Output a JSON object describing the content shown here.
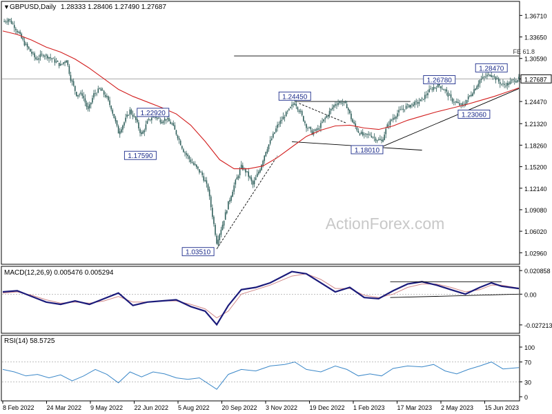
{
  "header": {
    "symbol": "GBPUSD,Daily",
    "ohlc": "1.28333 1.28406 1.27490 1.27687"
  },
  "watermark": "ActionForex.com",
  "colors": {
    "candle": "#2e5e5a",
    "ma": "#d21d1d",
    "macd": "#1a1a7a",
    "signal": "#d08888",
    "rsi": "#3a87c8",
    "label_border": "#1a2a8a",
    "grid": "#000000"
  },
  "chart_data": [
    {
      "type": "candlestick",
      "title": "GBPUSD,Daily",
      "ylim": [
        1.0142,
        1.3861
      ],
      "y_ticks": [
        "1.36710",
        "1.33650",
        "1.30590",
        "1.27687",
        "1.24470",
        "1.21320",
        "1.18260",
        "1.15200",
        "1.12140",
        "1.09080",
        "1.06020",
        "1.02960"
      ],
      "y_tick_values": [
        1.3671,
        1.3365,
        1.3059,
        1.27687,
        1.2447,
        1.2132,
        1.1826,
        1.152,
        1.1214,
        1.0908,
        1.0602,
        1.0296
      ],
      "x_ticks": [
        "8 Feb 2022",
        "24 Mar 2022",
        "9 May 2022",
        "22 Jun 2022",
        "5 Aug 2022",
        "20 Sep 2022",
        "3 Nov 2022",
        "19 Dec 2022",
        "1 Feb 2023",
        "17 Mar 2023",
        "2 May 2023",
        "15 Jun 2023"
      ],
      "last_price": 1.27687,
      "price_path": [
        [
          0,
          1.358
        ],
        [
          4,
          1.362
        ],
        [
          8,
          1.352
        ],
        [
          12,
          1.338
        ],
        [
          15,
          1.327
        ],
        [
          19,
          1.316
        ],
        [
          23,
          1.305
        ],
        [
          28,
          1.312
        ],
        [
          32,
          1.308
        ],
        [
          36,
          1.302
        ],
        [
          40,
          1.296
        ],
        [
          44,
          1.305
        ],
        [
          47,
          1.277
        ],
        [
          51,
          1.255
        ],
        [
          55,
          1.255
        ],
        [
          59,
          1.232
        ],
        [
          63,
          1.255
        ],
        [
          67,
          1.262
        ],
        [
          71,
          1.253
        ],
        [
          75,
          1.236
        ],
        [
          80,
          1.201
        ],
        [
          84,
          1.215
        ],
        [
          88,
          1.232
        ],
        [
          92,
          1.218
        ],
        [
          96,
          1.197
        ],
        [
          100,
          1.215
        ],
        [
          104,
          1.225
        ],
        [
          109,
          1.218
        ],
        [
          113,
          1.22
        ],
        [
          117,
          1.212
        ],
        [
          121,
          1.195
        ],
        [
          125,
          1.175
        ],
        [
          130,
          1.16
        ],
        [
          134,
          1.15
        ],
        [
          138,
          1.14
        ],
        [
          142,
          1.12
        ],
        [
          148,
          1.045
        ],
        [
          152,
          1.07
        ],
        [
          156,
          1.1
        ],
        [
          160,
          1.125
        ],
        [
          165,
          1.152
        ],
        [
          169,
          1.143
        ],
        [
          173,
          1.126
        ],
        [
          178,
          1.15
        ],
        [
          182,
          1.175
        ],
        [
          186,
          1.192
        ],
        [
          190,
          1.21
        ],
        [
          194,
          1.222
        ],
        [
          198,
          1.232
        ],
        [
          202,
          1.2445
        ],
        [
          206,
          1.228
        ],
        [
          210,
          1.21
        ],
        [
          214,
          1.2
        ],
        [
          218,
          1.205
        ],
        [
          222,
          1.218
        ],
        [
          226,
          1.23
        ],
        [
          230,
          1.242
        ],
        [
          234,
          1.2445
        ],
        [
          238,
          1.238
        ],
        [
          242,
          1.215
        ],
        [
          246,
          1.202
        ],
        [
          250,
          1.195
        ],
        [
          254,
          1.198
        ],
        [
          258,
          1.192
        ],
        [
          262,
          1.188
        ],
        [
          266,
          1.21
        ],
        [
          270,
          1.222
        ],
        [
          274,
          1.23
        ],
        [
          278,
          1.236
        ],
        [
          282,
          1.24
        ],
        [
          286,
          1.242
        ],
        [
          290,
          1.247
        ],
        [
          294,
          1.258
        ],
        [
          298,
          1.265
        ],
        [
          302,
          1.2678
        ],
        [
          306,
          1.26
        ],
        [
          310,
          1.248
        ],
        [
          314,
          1.242
        ],
        [
          318,
          1.238
        ],
        [
          322,
          1.25
        ],
        [
          326,
          1.262
        ],
        [
          330,
          1.275
        ],
        [
          334,
          1.28
        ],
        [
          338,
          1.2847
        ],
        [
          342,
          1.275
        ],
        [
          346,
          1.268
        ],
        [
          350,
          1.27
        ],
        [
          354,
          1.276
        ],
        [
          357,
          1.2769
        ]
      ],
      "series": [
        {
          "name": "MA",
          "values": [
            [
              0,
              1.345
            ],
            [
              10,
              1.34
            ],
            [
              20,
              1.332
            ],
            [
              30,
              1.322
            ],
            [
              40,
              1.315
            ],
            [
              50,
              1.305
            ],
            [
              60,
              1.292
            ],
            [
              70,
              1.277
            ],
            [
              80,
              1.262
            ],
            [
              90,
              1.252
            ],
            [
              100,
              1.244
            ],
            [
              110,
              1.236
            ],
            [
              120,
              1.227
            ],
            [
              130,
              1.211
            ],
            [
              140,
              1.188
            ],
            [
              150,
              1.162
            ],
            [
              160,
              1.149
            ],
            [
              170,
              1.149
            ],
            [
              180,
              1.153
            ],
            [
              190,
              1.165
            ],
            [
              200,
              1.18
            ],
            [
              210,
              1.195
            ],
            [
              220,
              1.204
            ],
            [
              230,
              1.21
            ],
            [
              240,
              1.211
            ],
            [
              250,
              1.207
            ],
            [
              260,
              1.205
            ],
            [
              270,
              1.21
            ],
            [
              280,
              1.218
            ],
            [
              290,
              1.224
            ],
            [
              300,
              1.23
            ],
            [
              310,
              1.235
            ],
            [
              320,
              1.24
            ],
            [
              330,
              1.246
            ],
            [
              340,
              1.252
            ],
            [
              350,
              1.259
            ],
            [
              357,
              1.264
            ]
          ]
        }
      ],
      "annotations": [
        {
          "text": "1.22920",
          "x": 92,
          "y": 1.2292
        },
        {
          "text": "1.17590",
          "x": 88,
          "y": 1.1759
        },
        {
          "text": "1.03510",
          "x": 148,
          "y": 1.0351
        },
        {
          "text": "1.24450",
          "x": 202,
          "y": 1.2445
        },
        {
          "text": "1.18010",
          "x": 262,
          "y": 1.1801
        },
        {
          "text": "1.26780",
          "x": 302,
          "y": 1.2678
        },
        {
          "text": "1.23060",
          "x": 314,
          "y": 1.2306
        },
        {
          "text": "1.28470",
          "x": 338,
          "y": 1.2847
        },
        {
          "text": "FE 61.8",
          "x": 352,
          "y": 1.3095
        }
      ],
      "lines": [
        {
          "name": "fe-618-line",
          "from": [
            160,
            1.3095
          ],
          "to": [
            357,
            1.3095
          ]
        },
        {
          "name": "resistance-line",
          "from": [
            202,
            1.2447
          ],
          "to": [
            282,
            1.2447
          ]
        },
        {
          "name": "support-line",
          "from": [
            200,
            1.1875
          ],
          "to": [
            290,
            1.1755
          ]
        },
        {
          "name": "rising-trendline",
          "from": [
            262,
            1.1801
          ],
          "to": [
            357,
            1.263
          ]
        },
        {
          "name": "dashed-rally-line",
          "from": [
            148,
            1.0351
          ],
          "to": [
            190,
            1.1675
          ]
        },
        {
          "name": "dashed-retrace-line",
          "from": [
            205,
            1.242
          ],
          "to": [
            238,
            1.2137
          ]
        }
      ]
    },
    {
      "type": "line",
      "title": "MACD(12,26,9) 0.005476 0.005294",
      "ylim": [
        -0.034,
        0.024
      ],
      "y_ticks": [
        "0.020858",
        "0.00",
        "-0.027213"
      ],
      "y_tick_values": [
        0.020858,
        0.0,
        -0.027213
      ],
      "series": [
        {
          "name": "MACD",
          "values": [
            [
              0,
              0.002
            ],
            [
              10,
              0.003
            ],
            [
              20,
              -0.002
            ],
            [
              30,
              -0.007
            ],
            [
              40,
              -0.009
            ],
            [
              50,
              -0.006
            ],
            [
              60,
              -0.009
            ],
            [
              70,
              -0.004
            ],
            [
              80,
              0.001
            ],
            [
              90,
              -0.01
            ],
            [
              100,
              -0.007
            ],
            [
              110,
              -0.006
            ],
            [
              120,
              -0.005
            ],
            [
              130,
              -0.011
            ],
            [
              140,
              -0.015
            ],
            [
              148,
              -0.027
            ],
            [
              156,
              -0.01
            ],
            [
              165,
              0.004
            ],
            [
              175,
              0.006
            ],
            [
              185,
              0.01
            ],
            [
              200,
              0.02
            ],
            [
              210,
              0.018
            ],
            [
              220,
              0.01
            ],
            [
              230,
              0.002
            ],
            [
              240,
              0.006
            ],
            [
              250,
              -0.003
            ],
            [
              260,
              -0.004
            ],
            [
              270,
              0.003
            ],
            [
              280,
              0.009
            ],
            [
              290,
              0.011
            ],
            [
              300,
              0.008
            ],
            [
              310,
              0.004
            ],
            [
              320,
              0.0
            ],
            [
              330,
              0.006
            ],
            [
              338,
              0.01
            ],
            [
              345,
              0.007
            ],
            [
              357,
              0.005
            ]
          ]
        },
        {
          "name": "Signal",
          "values": [
            [
              0,
              0.001
            ],
            [
              10,
              0.002
            ],
            [
              20,
              -0.001
            ],
            [
              30,
              -0.005
            ],
            [
              40,
              -0.008
            ],
            [
              50,
              -0.007
            ],
            [
              60,
              -0.008
            ],
            [
              70,
              -0.006
            ],
            [
              80,
              -0.002
            ],
            [
              90,
              -0.007
            ],
            [
              100,
              -0.007
            ],
            [
              110,
              -0.006
            ],
            [
              120,
              -0.006
            ],
            [
              130,
              -0.009
            ],
            [
              140,
              -0.013
            ],
            [
              148,
              -0.021
            ],
            [
              156,
              -0.015
            ],
            [
              165,
              0.0
            ],
            [
              175,
              0.004
            ],
            [
              185,
              0.008
            ],
            [
              200,
              0.016
            ],
            [
              210,
              0.018
            ],
            [
              220,
              0.013
            ],
            [
              230,
              0.005
            ],
            [
              240,
              0.005
            ],
            [
              250,
              -0.001
            ],
            [
              260,
              -0.003
            ],
            [
              270,
              0.0
            ],
            [
              280,
              0.006
            ],
            [
              290,
              0.009
            ],
            [
              300,
              0.009
            ],
            [
              310,
              0.006
            ],
            [
              320,
              0.002
            ],
            [
              330,
              0.004
            ],
            [
              338,
              0.008
            ],
            [
              345,
              0.008
            ],
            [
              357,
              0.0053
            ]
          ]
        }
      ],
      "lines": [
        {
          "name": "macd-upper-line",
          "from": [
            268,
            0.011
          ],
          "to": [
            345,
            0.011
          ]
        },
        {
          "name": "macd-lower-line",
          "from": [
            268,
            -0.003
          ],
          "to": [
            357,
            0.0
          ]
        }
      ]
    },
    {
      "type": "line",
      "title": "RSI(14) 58.5725",
      "ylim": [
        0,
        100
      ],
      "y_ticks": [
        "100",
        "70",
        "30",
        "0"
      ],
      "y_tick_values": [
        100,
        70,
        30,
        0
      ],
      "series": [
        {
          "name": "RSI",
          "values": [
            [
              0,
              55
            ],
            [
              8,
              50
            ],
            [
              16,
              42
            ],
            [
              24,
              45
            ],
            [
              32,
              38
            ],
            [
              40,
              44
            ],
            [
              48,
              32
            ],
            [
              56,
              42
            ],
            [
              64,
              55
            ],
            [
              72,
              45
            ],
            [
              80,
              28
            ],
            [
              88,
              50
            ],
            [
              96,
              40
            ],
            [
              104,
              50
            ],
            [
              112,
              46
            ],
            [
              120,
              38
            ],
            [
              128,
              35
            ],
            [
              136,
              38
            ],
            [
              148,
              15
            ],
            [
              156,
              45
            ],
            [
              165,
              55
            ],
            [
              175,
              52
            ],
            [
              185,
              62
            ],
            [
              195,
              65
            ],
            [
              202,
              70
            ],
            [
              210,
              55
            ],
            [
              220,
              50
            ],
            [
              230,
              62
            ],
            [
              238,
              55
            ],
            [
              246,
              42
            ],
            [
              254,
              46
            ],
            [
              262,
              42
            ],
            [
              270,
              57
            ],
            [
              280,
              62
            ],
            [
              290,
              60
            ],
            [
              298,
              65
            ],
            [
              306,
              52
            ],
            [
              314,
              46
            ],
            [
              322,
              55
            ],
            [
              330,
              62
            ],
            [
              338,
              70
            ],
            [
              346,
              56
            ],
            [
              357,
              58.6
            ]
          ]
        }
      ]
    }
  ]
}
